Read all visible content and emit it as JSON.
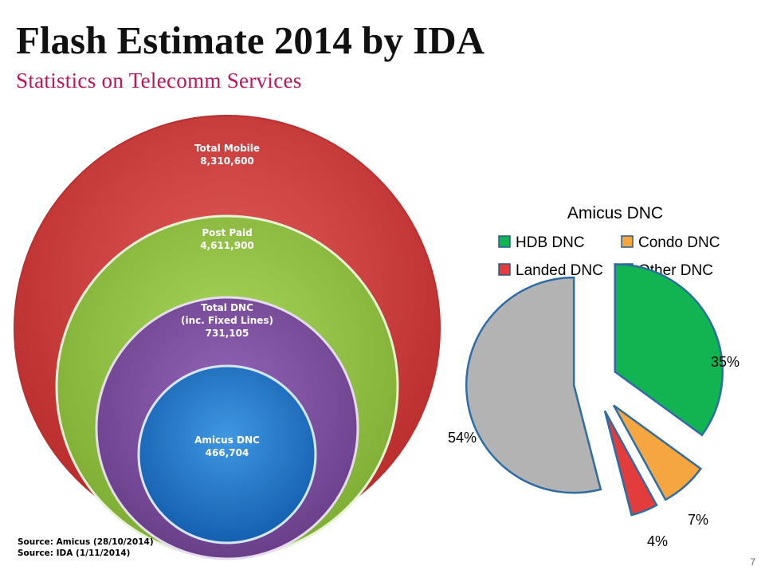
{
  "slide": {
    "title": "Flash Estimate 2014 by IDA",
    "subtitle": "Statistics on Telecomm Services",
    "sources": [
      "Source: Amicus (28/10/2014)",
      "Source: IDA (1/11/2014)"
    ],
    "page_number": "7"
  },
  "chart_data": [
    {
      "type": "nested_bubble",
      "items": [
        {
          "lines": [
            "Total Mobile",
            "8,310,600"
          ],
          "value": 8310600,
          "color": "#c93838"
        },
        {
          "lines": [
            "Post Paid",
            "4,611,900"
          ],
          "value": 4611900,
          "color": "#8cbf3f"
        },
        {
          "lines": [
            "Total DNC",
            "(inc. Fixed Lines)",
            "731,105"
          ],
          "value": 731105,
          "color": "#7e4f9e"
        },
        {
          "lines": [
            "Amicus DNC",
            "466,704"
          ],
          "value": 466704,
          "color": "#1e73c8"
        }
      ]
    },
    {
      "type": "pie",
      "title": "Amicus DNC",
      "legend": [
        "HDB DNC",
        "Condo DNC",
        "Landed DNC",
        "Other DNC"
      ],
      "values": [
        35,
        7,
        4,
        54
      ],
      "labels": [
        "35%",
        "7%",
        "4%",
        "54%"
      ],
      "colors": [
        "#12b351",
        "#f5a640",
        "#e23c3c",
        "#b3b3b3"
      ]
    }
  ]
}
